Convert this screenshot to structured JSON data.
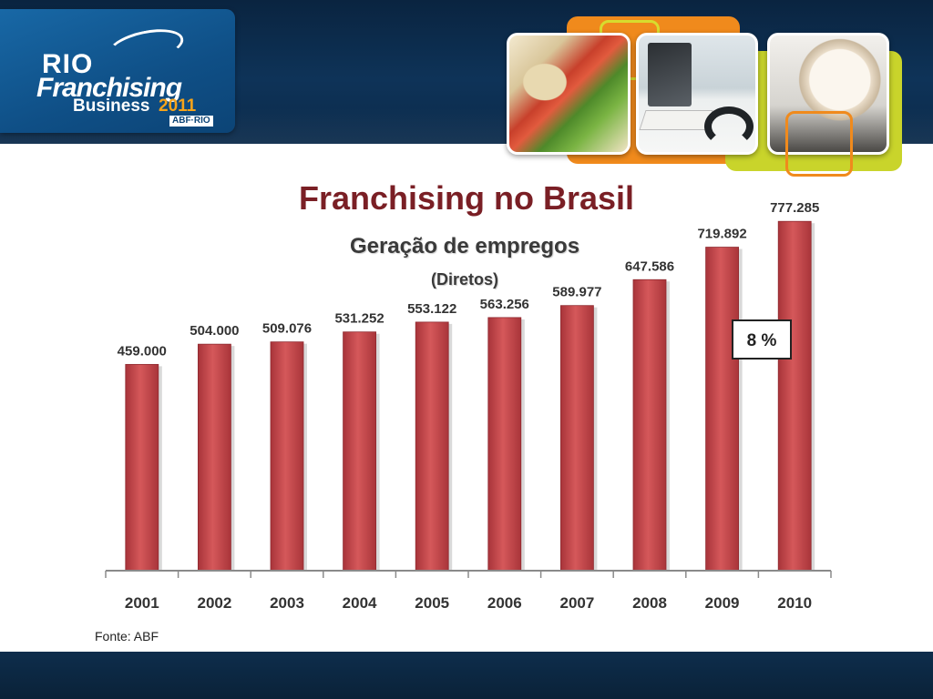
{
  "header": {
    "logo": {
      "line1": "RIO",
      "line2": "Franchising",
      "line3": "Business",
      "year": "2011",
      "badge": "ABF·RIO"
    },
    "photos": [
      "sandwich-photo",
      "computer-headset-photo",
      "coffee-cup-photo"
    ]
  },
  "slide": {
    "title": "Franchising no Brasil",
    "source": "Fonte: ABF"
  },
  "colors": {
    "title": "#7a1f25",
    "bar": "#c8474a",
    "navy": "#0e3358",
    "orange": "#f08a1c",
    "yellow": "#c9d42b"
  },
  "chart_data": {
    "type": "bar",
    "title": "Geração de empregos",
    "subtitle": "(Diretos)",
    "xlabel": "",
    "ylabel": "",
    "categories": [
      "2001",
      "2002",
      "2003",
      "2004",
      "2005",
      "2006",
      "2007",
      "2008",
      "2009",
      "2010"
    ],
    "values": [
      459000,
      504000,
      509076,
      531252,
      553122,
      563256,
      589977,
      647586,
      719892,
      777285
    ],
    "labels": [
      "459.000",
      "504.000",
      "509.076",
      "531.252",
      "553.122",
      "563.256",
      "589.977",
      "647.586",
      "719.892",
      "777.285"
    ],
    "ylim": [
      0,
      800000
    ],
    "grid": false,
    "legend": "none",
    "annotation": {
      "text": "8 %",
      "category": "2010"
    }
  }
}
